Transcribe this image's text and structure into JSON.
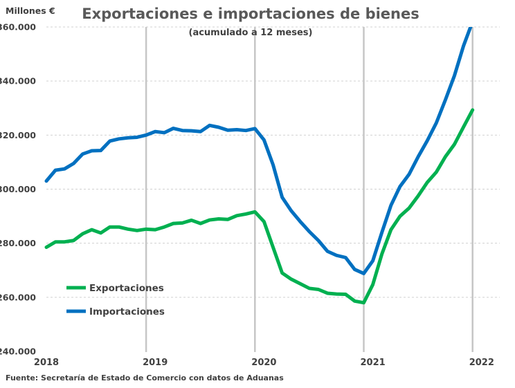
{
  "chart_data": {
    "type": "line",
    "title": "Exportaciones e importaciones de bienes",
    "subtitle": "(acumulado a 12 meses)",
    "ylabel": "Millones €",
    "ylim": [
      240000,
      360000
    ],
    "yticks": [
      240000,
      260000,
      280000,
      300000,
      320000,
      340000,
      360000
    ],
    "ytick_labels": [
      "240.000",
      "260.000",
      "280.000",
      "300.000",
      "320.000",
      "340.000",
      "360.000"
    ],
    "xticks": [
      "2018",
      "2019",
      "2020",
      "2021",
      "2022"
    ],
    "grid": true,
    "legend_position": "lower-left",
    "x": [
      "2018-01",
      "2018-02",
      "2018-03",
      "2018-04",
      "2018-05",
      "2018-06",
      "2018-07",
      "2018-08",
      "2018-09",
      "2018-10",
      "2018-11",
      "2018-12",
      "2019-01",
      "2019-02",
      "2019-03",
      "2019-04",
      "2019-05",
      "2019-06",
      "2019-07",
      "2019-08",
      "2019-09",
      "2019-10",
      "2019-11",
      "2019-12",
      "2020-01",
      "2020-02",
      "2020-03",
      "2020-04",
      "2020-05",
      "2020-06",
      "2020-07",
      "2020-08",
      "2020-09",
      "2020-10",
      "2020-11",
      "2020-12",
      "2021-01",
      "2021-02",
      "2021-03",
      "2021-04",
      "2021-05",
      "2021-06",
      "2021-07",
      "2021-08",
      "2021-09",
      "2021-10",
      "2021-11",
      "2021-12",
      "2022-01",
      "2022-02",
      "2022-03"
    ],
    "series": [
      {
        "name": "Exportaciones",
        "color": "#00b050",
        "values": [
          278500,
          280500,
          280500,
          281000,
          283500,
          285000,
          283800,
          286000,
          286000,
          285200,
          284700,
          285200,
          285000,
          286000,
          287300,
          287500,
          288500,
          287300,
          288600,
          289000,
          288800,
          290200,
          290800,
          291600,
          288000,
          278500,
          269000,
          266700,
          265000,
          263300,
          262900,
          261500,
          261200,
          261100,
          258600,
          258000,
          264700,
          276000,
          285000,
          290000,
          293000,
          297500,
          302500,
          306300,
          312000,
          316600,
          323000,
          329300,
          null,
          null,
          null
        ]
      },
      {
        "name": "Importaciones",
        "color": "#0070c0",
        "values": [
          303000,
          307000,
          307500,
          309500,
          313000,
          314200,
          314300,
          317800,
          318600,
          319000,
          319200,
          320000,
          321300,
          320900,
          322500,
          321700,
          321600,
          321300,
          323600,
          322900,
          321800,
          322000,
          321700,
          322400,
          318200,
          309000,
          297000,
          292000,
          288000,
          284300,
          281000,
          277000,
          275500,
          274700,
          270300,
          268800,
          273500,
          284000,
          294000,
          301000,
          305500,
          312000,
          317900,
          324500,
          333000,
          342000,
          353000,
          362000,
          null,
          null,
          null
        ]
      }
    ],
    "source": "Fuente: Secretaría de Estado de Comercio con datos de Aduanas"
  }
}
